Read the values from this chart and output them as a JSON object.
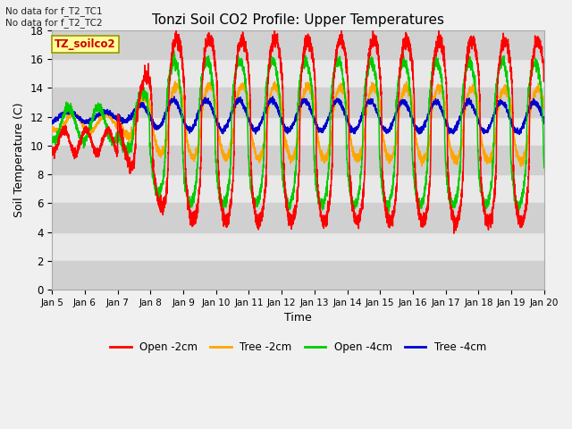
{
  "title": "Tonzi Soil CO2 Profile: Upper Temperatures",
  "xlabel": "Time",
  "ylabel": "Soil Temperature (C)",
  "top_text_1": "No data for f_T2_TC1",
  "top_text_2": "No data for f_T2_TC2",
  "box_label": "TZ_soilco2",
  "ylim": [
    0,
    18
  ],
  "yticks": [
    0,
    2,
    4,
    6,
    8,
    10,
    12,
    14,
    16,
    18
  ],
  "xtick_labels": [
    "Jan 5",
    "Jan 6",
    "Jan 7",
    "Jan 8",
    "Jan 9",
    "Jan 10",
    "Jan 11",
    "Jan 12",
    "Jan 13",
    "Jan 14",
    "Jan 15",
    "Jan 16",
    "Jan 17",
    "Jan 18",
    "Jan 19",
    "Jan 20"
  ],
  "legend_labels": [
    "Open -2cm",
    "Tree -2cm",
    "Open -4cm",
    "Tree -4cm"
  ],
  "legend_colors": [
    "#ff0000",
    "#ffa500",
    "#00cc00",
    "#0000cc"
  ],
  "plot_bg": "#e8e8e8",
  "band_color_dark": "#d0d0d0",
  "band_color_light": "#e8e8e8",
  "fig_bg": "#f0f0f0"
}
